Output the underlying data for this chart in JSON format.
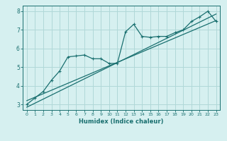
{
  "title": "",
  "xlabel": "Humidex (Indice chaleur)",
  "ylabel": "",
  "bg_color": "#d6f0f0",
  "grid_color": "#b0d8d8",
  "line_color": "#1a7070",
  "xlim": [
    -0.5,
    23.5
  ],
  "ylim": [
    2.7,
    8.3
  ],
  "xticks": [
    0,
    1,
    2,
    3,
    4,
    5,
    6,
    7,
    8,
    9,
    10,
    11,
    12,
    13,
    14,
    15,
    16,
    17,
    18,
    19,
    20,
    21,
    22,
    23
  ],
  "yticks": [
    3,
    4,
    5,
    6,
    7,
    8
  ],
  "curve_x": [
    0,
    1,
    2,
    3,
    4,
    5,
    6,
    7,
    8,
    9,
    10,
    11,
    12,
    13,
    14,
    15,
    16,
    17,
    18,
    19,
    20,
    21,
    22,
    23
  ],
  "curve_y": [
    3.0,
    3.35,
    3.7,
    4.3,
    4.8,
    5.55,
    5.6,
    5.65,
    5.45,
    5.45,
    5.2,
    5.2,
    6.9,
    7.3,
    6.65,
    6.6,
    6.65,
    6.65,
    6.85,
    7.0,
    7.45,
    7.7,
    8.0,
    7.45
  ],
  "trend1_x": [
    0,
    23
  ],
  "trend1_y": [
    3.2,
    7.5
  ],
  "trend2_x": [
    0,
    23
  ],
  "trend2_y": [
    2.85,
    7.85
  ]
}
